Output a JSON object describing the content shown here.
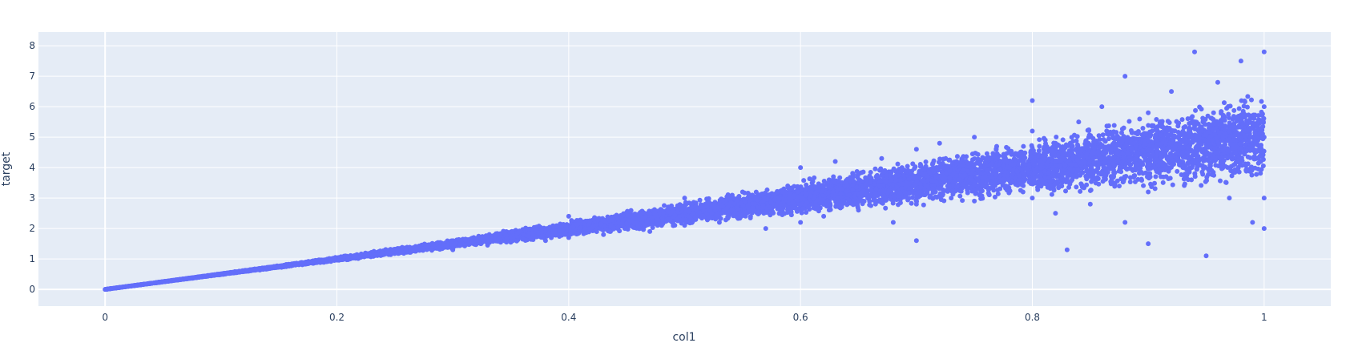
{
  "chart_data": {
    "type": "scatter",
    "title": "",
    "xlabel": "col1",
    "ylabel": "target",
    "xlim": [
      -0.0575,
      1.0575
    ],
    "ylim": [
      -0.55,
      8.45
    ],
    "xticks": [
      0,
      0.2,
      0.4,
      0.6,
      0.8,
      1
    ],
    "xtick_labels": [
      "0",
      "0.2",
      "0.4",
      "0.6",
      "0.8",
      "1"
    ],
    "yticks": [
      0,
      1,
      2,
      3,
      4,
      5,
      6,
      7,
      8
    ],
    "ytick_labels": [
      "0",
      "1",
      "2",
      "3",
      "4",
      "5",
      "6",
      "7",
      "8"
    ],
    "grid": true,
    "legend": "none",
    "colors": {
      "marker": "#636efa",
      "plot_bg": "#e5ecf6",
      "grid": "#ffffff",
      "text": "#2a3f5f"
    },
    "series": [
      {
        "points": [
          [
            0,
            0
          ],
          [
            0.02,
            0.1
          ],
          [
            0.05,
            0.25
          ],
          [
            0.08,
            0.4
          ],
          [
            0.1,
            0.5
          ],
          [
            0.12,
            0.6
          ],
          [
            0.15,
            0.75
          ],
          [
            0.18,
            0.9
          ],
          [
            0.2,
            1.0
          ],
          [
            0.22,
            1.05
          ],
          [
            0.25,
            1.25
          ],
          [
            0.27,
            1.4
          ],
          [
            0.3,
            1.5
          ],
          [
            0.3,
            1.3
          ],
          [
            0.32,
            1.65
          ],
          [
            0.33,
            1.45
          ],
          [
            0.35,
            1.8
          ],
          [
            0.35,
            1.55
          ],
          [
            0.37,
            1.95
          ],
          [
            0.38,
            1.6
          ],
          [
            0.4,
            2.0
          ],
          [
            0.4,
            1.7
          ],
          [
            0.4,
            2.4
          ],
          [
            0.42,
            2.2
          ],
          [
            0.43,
            1.8
          ],
          [
            0.45,
            2.5
          ],
          [
            0.45,
            2.0
          ],
          [
            0.47,
            2.3
          ],
          [
            0.47,
            1.9
          ],
          [
            0.5,
            2.5
          ],
          [
            0.5,
            2.1
          ],
          [
            0.5,
            3.0
          ],
          [
            0.52,
            2.8
          ],
          [
            0.53,
            2.2
          ],
          [
            0.55,
            3.2
          ],
          [
            0.55,
            2.5
          ],
          [
            0.57,
            2.9
          ],
          [
            0.57,
            2.0
          ],
          [
            0.6,
            3.0
          ],
          [
            0.6,
            2.2
          ],
          [
            0.6,
            4.0
          ],
          [
            0.61,
            3.5
          ],
          [
            0.62,
            2.4
          ],
          [
            0.63,
            4.2
          ],
          [
            0.65,
            3.8
          ],
          [
            0.65,
            2.6
          ],
          [
            0.65,
            3.2
          ],
          [
            0.67,
            4.3
          ],
          [
            0.68,
            2.2
          ],
          [
            0.7,
            3.5
          ],
          [
            0.7,
            4.6
          ],
          [
            0.7,
            2.8
          ],
          [
            0.7,
            1.6
          ],
          [
            0.72,
            4.8
          ],
          [
            0.73,
            3.0
          ],
          [
            0.75,
            3.8
          ],
          [
            0.75,
            5.0
          ],
          [
            0.75,
            2.9
          ],
          [
            0.77,
            3.5
          ],
          [
            0.78,
            4.5
          ],
          [
            0.8,
            4.0
          ],
          [
            0.8,
            5.2
          ],
          [
            0.8,
            6.2
          ],
          [
            0.8,
            3.0
          ],
          [
            0.82,
            2.5
          ],
          [
            0.82,
            4.8
          ],
          [
            0.83,
            1.3
          ],
          [
            0.84,
            5.5
          ],
          [
            0.85,
            4.2
          ],
          [
            0.85,
            2.8
          ],
          [
            0.86,
            6.0
          ],
          [
            0.87,
            3.5
          ],
          [
            0.88,
            7.0
          ],
          [
            0.88,
            2.2
          ],
          [
            0.9,
            4.5
          ],
          [
            0.9,
            5.8
          ],
          [
            0.9,
            3.2
          ],
          [
            0.9,
            1.5
          ],
          [
            0.92,
            6.5
          ],
          [
            0.93,
            4.0
          ],
          [
            0.94,
            7.8
          ],
          [
            0.95,
            5.0
          ],
          [
            0.95,
            1.1
          ],
          [
            0.96,
            6.8
          ],
          [
            0.97,
            3.0
          ],
          [
            0.98,
            7.5
          ],
          [
            0.98,
            4.8
          ],
          [
            0.99,
            2.2
          ],
          [
            1.0,
            5.0
          ],
          [
            1.0,
            7.8
          ],
          [
            1.0,
            2.0
          ],
          [
            1.0,
            6.0
          ],
          [
            1.0,
            3.0
          ]
        ]
      }
    ]
  }
}
